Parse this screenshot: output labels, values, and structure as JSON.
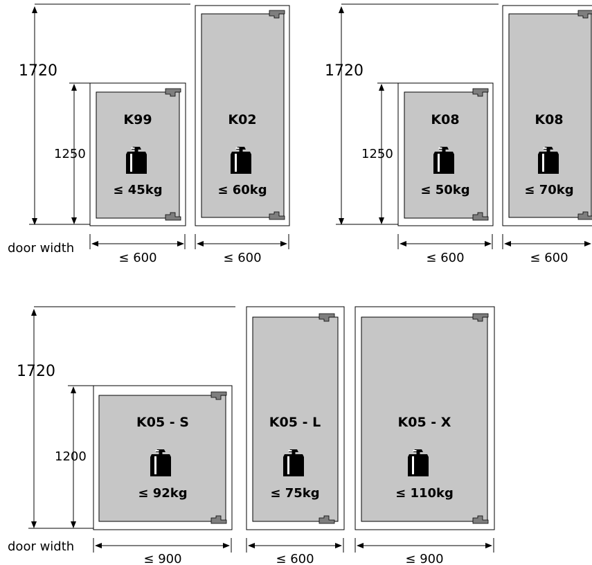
{
  "row_label": "door width",
  "groups": [
    {
      "height_total": "1720",
      "height_small": "1250",
      "units": [
        {
          "code": "K99",
          "weight": "≤ 45kg",
          "width": "≤ 600"
        },
        {
          "code": "K02",
          "weight": "≤ 60kg",
          "width": "≤ 600"
        }
      ]
    },
    {
      "height_total": "1720",
      "height_small": "1250",
      "units": [
        {
          "code": "K08",
          "weight": "≤ 50kg",
          "width": "≤ 600"
        },
        {
          "code": "K08",
          "weight": "≤ 70kg",
          "width": "≤ 600"
        }
      ]
    },
    {
      "height_total": "1720",
      "height_small": "1200",
      "units": [
        {
          "code": "K05 - S",
          "weight": "≤ 92kg",
          "width": "≤ 900"
        },
        {
          "code": "K05 - L",
          "weight": "≤ 75kg",
          "width": "≤ 600"
        },
        {
          "code": "K05 - X",
          "weight": "≤ 110kg",
          "width": "≤ 900"
        }
      ]
    }
  ]
}
